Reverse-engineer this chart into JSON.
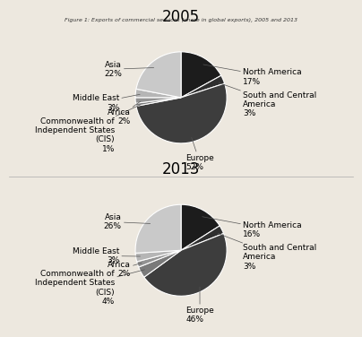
{
  "title_2005": "2005",
  "title_2013": "2013",
  "main_title": "Figure 1: Exports of commercial services (share in global exports), 2005 and 2013",
  "labels": [
    "North America",
    "South and Central\nAmerica",
    "Europe",
    "Commonwealth of\nIndependent States\n(CIS)",
    "Africa",
    "Middle East",
    "Asia"
  ],
  "values_2005": [
    17,
    3,
    52,
    1,
    2,
    3,
    22
  ],
  "values_2013": [
    16,
    3,
    46,
    4,
    2,
    3,
    26
  ],
  "colors": [
    "#1c1c1c",
    "#2e2e2e",
    "#3d3d3d",
    "#7a7a7a",
    "#929292",
    "#b5b5b5",
    "#c9c9c9"
  ],
  "pct_2005": [
    "17%",
    "3%",
    "52%",
    "1%",
    "2%",
    "3%",
    "22%"
  ],
  "pct_2013": [
    "16%",
    "3%",
    "46%",
    "4%",
    "2%",
    "3%",
    "26%"
  ],
  "bg_color": "#ede8df",
  "edge_color": "#ffffff",
  "title_fontsize": 12,
  "label_fontsize": 6.5
}
